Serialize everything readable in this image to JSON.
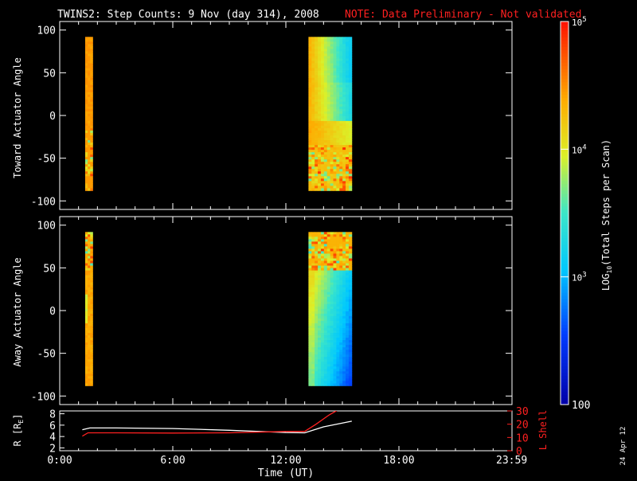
{
  "title": "TWINS2: Step Counts:  9 Nov (day 314), 2008",
  "note": "NOTE: Data Preliminary - Not validated",
  "date_stamp": "24 Apr 12",
  "colors": {
    "background": "#000000",
    "axes": "#ffffff",
    "note": "#ff2020",
    "r_line": "#ffffff",
    "l_shell_line": "#ff2020"
  },
  "chart_data": [
    {
      "type": "heatmap",
      "panel": "toward",
      "ylabel": "Toward Actuator Angle",
      "ylim": [
        -110,
        110
      ],
      "yticks": [
        100,
        50,
        0,
        -50,
        -100
      ],
      "xlim": [
        0,
        24
      ],
      "data_blocks": [
        {
          "t_start": 1.35,
          "t_end": 1.75,
          "angle_min": -88,
          "angle_max": 92,
          "level": "high",
          "pattern": "mostly uniform orange, noisy below -15"
        },
        {
          "t_start": 13.2,
          "t_end": 15.5,
          "angle_min": -88,
          "angle_max": 92,
          "level": "mixed",
          "pattern": "orange/yellow left edge fading to cyan right, noisy orange band near bottom"
        }
      ]
    },
    {
      "type": "heatmap",
      "panel": "away",
      "ylabel": "Away Actuator Angle",
      "ylim": [
        -110,
        110
      ],
      "yticks": [
        100,
        50,
        0,
        -50,
        -100
      ],
      "xlim": [
        0,
        24
      ],
      "data_blocks": [
        {
          "t_start": 1.35,
          "t_end": 1.75,
          "angle_min": -88,
          "angle_max": 92,
          "level": "high",
          "pattern": "orange with noisy top"
        },
        {
          "t_start": 13.2,
          "t_end": 15.5,
          "angle_min": -88,
          "angle_max": 92,
          "level": "mixed",
          "pattern": "noisy orange top, yellow/green middle, cyan/blue lower right"
        }
      ]
    },
    {
      "type": "line",
      "panel": "ephemeris",
      "ylabel_left": "R [R",
      "ylabel_left_sub": "E",
      "ylabel_left_end": "]",
      "ylabel_right": "L Shell",
      "y_left_ticks": [
        8,
        6,
        4,
        2
      ],
      "y_left_lim": [
        1.5,
        8.5
      ],
      "y_right_ticks": [
        30,
        20,
        10,
        0
      ],
      "y_right_lim": [
        0,
        30
      ],
      "xlim": [
        0,
        24
      ],
      "xticks": [
        {
          "t": 0,
          "label": "0:00"
        },
        {
          "t": 6,
          "label": "6:00"
        },
        {
          "t": 12,
          "label": "12:00"
        },
        {
          "t": 18,
          "label": "18:00"
        },
        {
          "t": 23.983,
          "label": "23:59"
        }
      ],
      "xlabel": "Time (UT)",
      "series": [
        {
          "name": "R",
          "axis": "left",
          "color": "#ffffff",
          "x": [
            1.2,
            1.6,
            3,
            6,
            9,
            12,
            13.0,
            14,
            15.5
          ],
          "y": [
            5.2,
            5.5,
            5.5,
            5.4,
            5.1,
            4.7,
            4.65,
            5.7,
            6.7
          ]
        },
        {
          "name": "L Shell",
          "axis": "right",
          "color": "#ff2020",
          "x": [
            1.2,
            1.5,
            3,
            6,
            9,
            12,
            13.0,
            13.6,
            14.3,
            14.8
          ],
          "y": [
            11,
            13.5,
            13.5,
            13.3,
            13.5,
            14.5,
            14.6,
            20,
            27,
            31
          ]
        }
      ]
    }
  ],
  "colorbar": {
    "label_prefix": "LOG",
    "label_sub": "10",
    "label_suffix": "(Total Steps per Scan)",
    "min_label": "100",
    "ticks": [
      {
        "base": "10",
        "exp": "5",
        "value": 100000
      },
      {
        "base": "10",
        "exp": "4",
        "value": 10000
      },
      {
        "base": "10",
        "exp": "3",
        "value": 1000
      }
    ],
    "lim": [
      100,
      100000
    ]
  }
}
